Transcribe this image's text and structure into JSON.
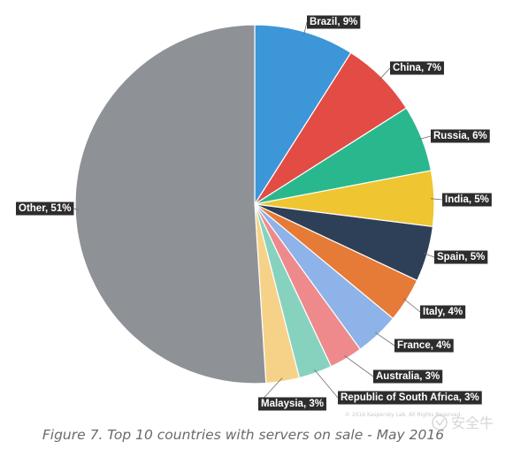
{
  "chart_data": {
    "type": "pie",
    "title": "",
    "caption": "Figure 7. Top 10 countries with servers on sale - May 2016",
    "slices": [
      {
        "label": "Brazil",
        "value": 9,
        "text": "Brazil, 9%",
        "color": "#3c96d8"
      },
      {
        "label": "China",
        "value": 7,
        "text": "China, 7%",
        "color": "#e34b45"
      },
      {
        "label": "Russia",
        "value": 6,
        "text": "Russia, 6%",
        "color": "#29b88d"
      },
      {
        "label": "India",
        "value": 5,
        "text": "India, 5%",
        "color": "#efc531"
      },
      {
        "label": "Spain",
        "value": 5,
        "text": "Spain, 5%",
        "color": "#2e4057"
      },
      {
        "label": "Italy",
        "value": 4,
        "text": "Italy, 4%",
        "color": "#e67a37"
      },
      {
        "label": "France",
        "value": 4,
        "text": "France, 4%",
        "color": "#8db3e8"
      },
      {
        "label": "Australia",
        "value": 3,
        "text": "Australia, 3%",
        "color": "#ee8a8c"
      },
      {
        "label": "Republic of South Africa",
        "value": 3,
        "text": "Republic of South Africa, 3%",
        "color": "#86d2bf"
      },
      {
        "label": "Malaysia",
        "value": 3,
        "text": "Malaysia, 3%",
        "color": "#f6d288"
      },
      {
        "label": "Other",
        "value": 51,
        "text": "Other, 51%",
        "color": "#8e9196"
      }
    ],
    "start_angle": "12 o'clock",
    "direction": "clockwise",
    "legend": "none, labels outside slices"
  },
  "watermark": {
    "copyright": "© 2016 Kaspersky Lab. All Rights Reserved.",
    "brand": "安全牛"
  }
}
